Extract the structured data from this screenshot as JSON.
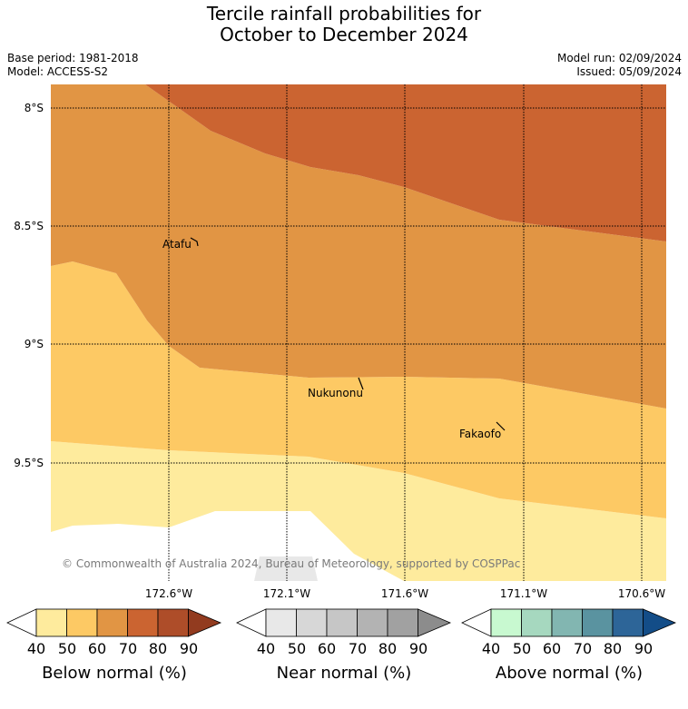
{
  "title": {
    "line1": "Tercile rainfall probabilities for",
    "line2": "October to December 2024"
  },
  "meta": {
    "base_period": "Base period: 1981-2018",
    "model": "Model: ACCESS-S2",
    "model_run": "Model run: 02/09/2024",
    "issued": "Issued: 05/09/2024"
  },
  "map": {
    "lat_labels": [
      "8°S",
      "8.5°S",
      "9°S",
      "9.5°S"
    ],
    "lon_labels": [
      "172.6°W",
      "172.1°W",
      "171.6°W",
      "171.1°W",
      "170.6°W"
    ],
    "places": [
      "Atafu",
      "Nukunonu",
      "Fakaofo"
    ],
    "copyright": "© Commonwealth of Australia 2024, Bureau of Meteorology, supported by COSPPac",
    "categories": [
      {
        "name": "Below normal 70-80%",
        "color": "#cb6431"
      },
      {
        "name": "Below normal 60-70%",
        "color": "#e19544"
      },
      {
        "name": "Below normal 50-60%",
        "color": "#fdc964"
      },
      {
        "name": "Below normal 40-50%",
        "color": "#feeb9d"
      },
      {
        "name": "Near normal 40-50%",
        "color": "#e8e8e8"
      }
    ]
  },
  "colorbars": {
    "ticks": [
      "40",
      "50",
      "60",
      "70",
      "80",
      "90"
    ],
    "below": {
      "label": "Below normal (%)",
      "colors": [
        "#feeb9d",
        "#fdc964",
        "#e19544",
        "#cb6431",
        "#ae4d29",
        "#923b1f"
      ]
    },
    "near": {
      "label": "Near normal (%)",
      "colors": [
        "#e8e8e8",
        "#d7d7d7",
        "#c6c6c6",
        "#b3b3b3",
        "#a1a1a1",
        "#8c8c8c"
      ]
    },
    "above": {
      "label": "Above normal (%)",
      "colors": [
        "#c8f9d0",
        "#a6d8bf",
        "#82b6b1",
        "#5a93a0",
        "#2d6598",
        "#134d88"
      ]
    }
  }
}
